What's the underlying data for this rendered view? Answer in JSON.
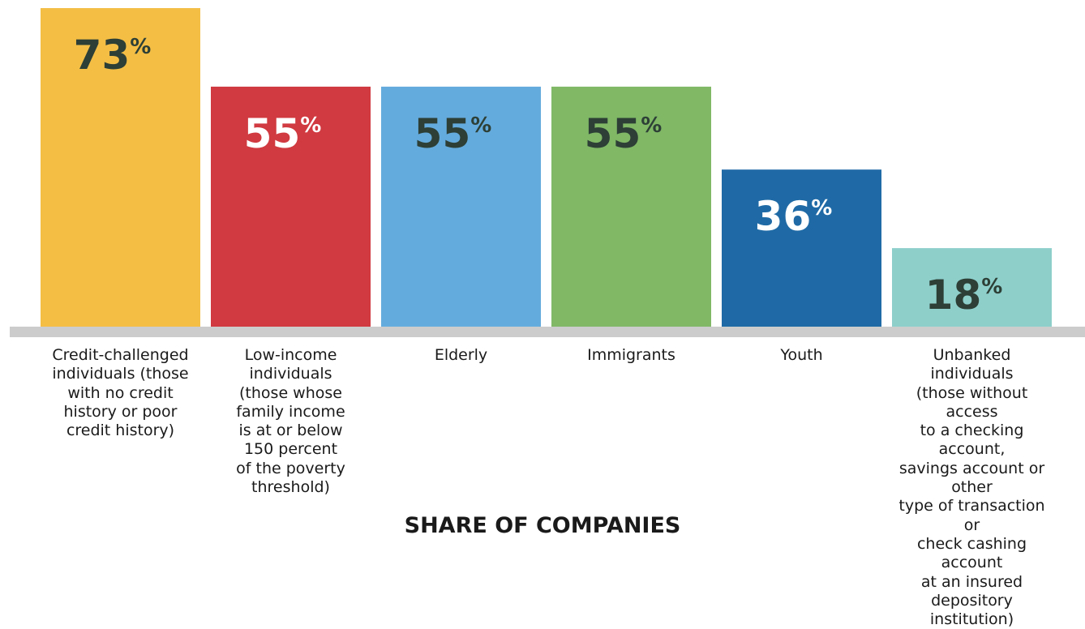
{
  "chart_data": {
    "type": "bar",
    "categories": [
      "Credit-challenged individuals (those with no credit history or poor credit history)",
      "Low-income individuals (those whose family income is at or below 150 percent of the poverty threshold)",
      "Elderly",
      "Immigrants",
      "Youth",
      "Unbanked individuals (those without access to a checking account, savings account or other type of transaction or check cashing account at an insured depository institution)"
    ],
    "category_lines": [
      [
        "Credit-challenged",
        "individuals (those",
        "with no credit",
        "history or poor",
        "credit history)"
      ],
      [
        "Low-income",
        "individuals",
        "(those whose",
        "family income",
        "is at or below",
        "150 percent",
        "of the poverty",
        "threshold)"
      ],
      [
        "Elderly"
      ],
      [
        "Immigrants"
      ],
      [
        "Youth"
      ],
      [
        "Unbanked individuals",
        "(those without access",
        "to a checking account,",
        "savings account or other",
        "type of transaction or",
        "check cashing account",
        "at an insured depository",
        "institution)"
      ]
    ],
    "values": [
      73,
      55,
      55,
      55,
      36,
      18
    ],
    "value_labels": [
      "73",
      "55",
      "55",
      "55",
      "36",
      "18"
    ],
    "unit_suffix": "%",
    "colors": [
      "#f4be45",
      "#d03a40",
      "#64abdd",
      "#80b866",
      "#1f6aa6",
      "#8ecfca"
    ],
    "value_label_colors": [
      "#2d3f36",
      "#ffffff",
      "#2d3f36",
      "#2d3f36",
      "#ffffff",
      "#2d3f36"
    ],
    "baseline_color": "#cccccc",
    "xlabel": "SHARE OF COMPANIES",
    "ylabel": "",
    "title": "",
    "ylim": [
      0,
      73
    ],
    "grid": false,
    "legend": "none"
  }
}
